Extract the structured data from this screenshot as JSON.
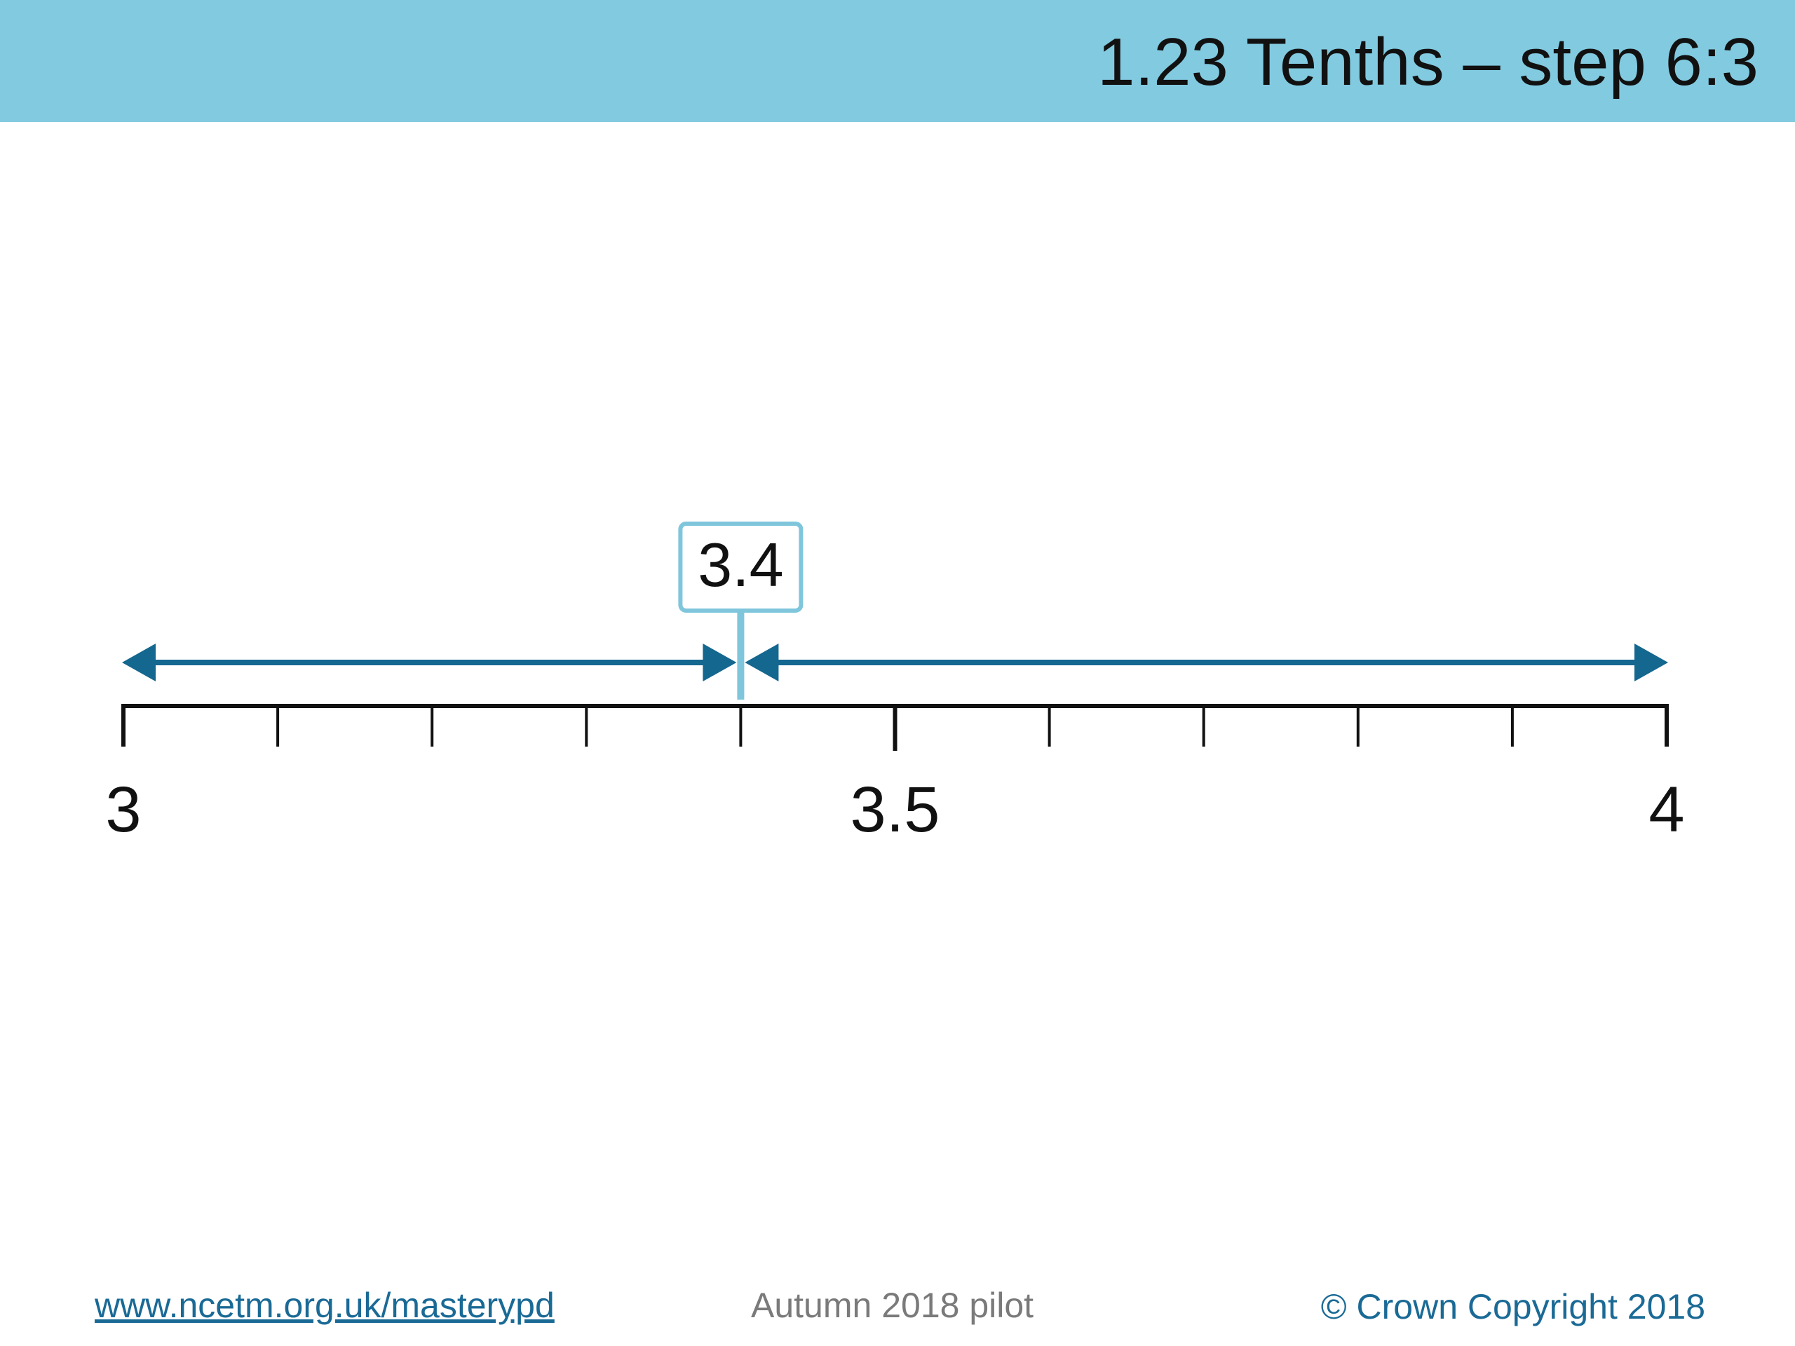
{
  "header": {
    "title": "1.23 Tenths – step 6:3"
  },
  "number_line": {
    "start": 3,
    "end": 4,
    "step": 0.1,
    "labels": [
      {
        "value": 3,
        "text": "3"
      },
      {
        "value": 3.5,
        "text": "3.5"
      },
      {
        "value": 4,
        "text": "4"
      }
    ],
    "marker": {
      "value": 3.4,
      "text": "3.4"
    },
    "arrows": [
      {
        "from": 3,
        "to": 3.4
      },
      {
        "from": 3.4,
        "to": 4
      }
    ]
  },
  "colors": {
    "header_bg": "#82cae0",
    "arrow": "#14678f",
    "marker_border": "#7fc6dc",
    "axis": "#111111",
    "footer_link": "#1a6a96",
    "footer_muted": "#7a7a7a"
  },
  "footer": {
    "link": "www.ncetm.org.uk/masterypd",
    "center": "Autumn 2018 pilot",
    "copyright": "© Crown Copyright 2018"
  }
}
